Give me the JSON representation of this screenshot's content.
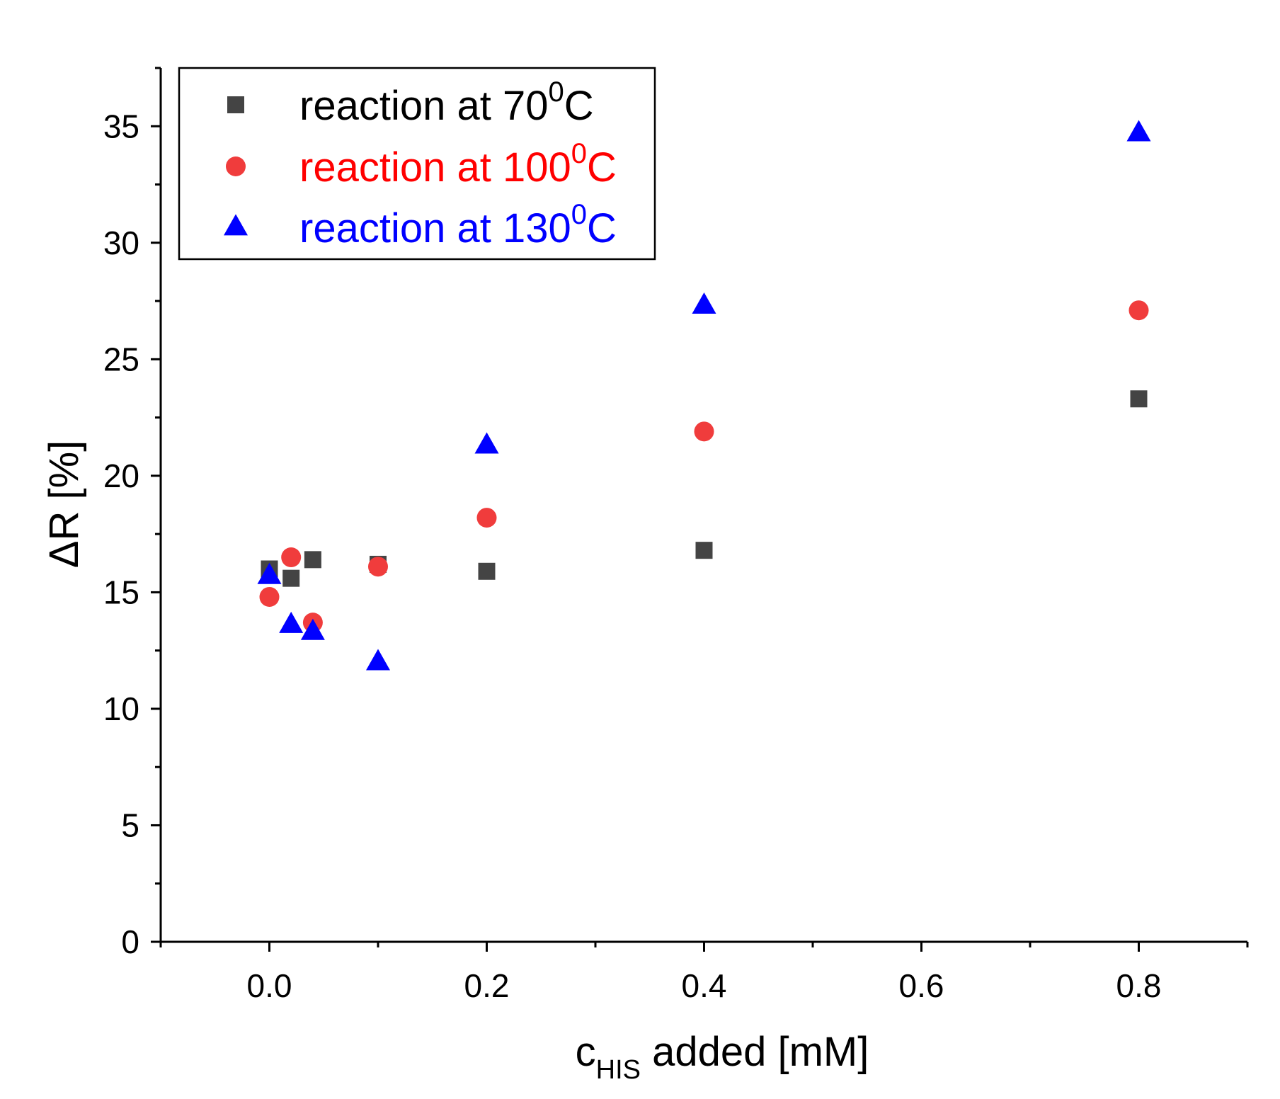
{
  "chart_data": {
    "type": "scatter",
    "title": "",
    "xlabel": {
      "main": "c",
      "sub": "HIS",
      "rest": " added [mM]"
    },
    "ylabel": "ΔR [%]",
    "xlim": [
      -0.1,
      0.9
    ],
    "ylim": [
      0,
      37.5
    ],
    "x_ticks": [
      0.0,
      0.2,
      0.4,
      0.6,
      0.8
    ],
    "x_tick_labels": [
      "0.0",
      "0.2",
      "0.4",
      "0.6",
      "0.8"
    ],
    "y_ticks": [
      0,
      5,
      10,
      15,
      20,
      25,
      30,
      35
    ],
    "y_tick_labels": [
      "0",
      "5",
      "10",
      "15",
      "20",
      "25",
      "30",
      "35"
    ],
    "grid": false,
    "legend_position": "top-left",
    "series": [
      {
        "name": "reaction at 70⁰C",
        "label_main": "reaction at 70",
        "label_sup": "0",
        "label_end": "C",
        "marker": "square",
        "color": "#444444",
        "x": [
          0.0,
          0.02,
          0.04,
          0.1,
          0.2,
          0.4,
          0.8
        ],
        "y": [
          16.0,
          15.6,
          16.4,
          16.2,
          15.9,
          16.8,
          23.3
        ]
      },
      {
        "name": "reaction at 100⁰C",
        "label_main": "reaction at 100",
        "label_sup": "0",
        "label_end": "C",
        "marker": "circle",
        "color": "#f03c3c",
        "text_color": "#ff0000",
        "x": [
          0.0,
          0.02,
          0.04,
          0.1,
          0.2,
          0.4,
          0.8
        ],
        "y": [
          14.8,
          16.5,
          13.7,
          16.1,
          18.2,
          21.9,
          27.1
        ]
      },
      {
        "name": "reaction at 130⁰C",
        "label_main": "reaction at 130",
        "label_sup": "0",
        "label_end": "C",
        "marker": "triangle",
        "color": "#0000ff",
        "text_color": "#0000ff",
        "x": [
          0.0,
          0.02,
          0.04,
          0.1,
          0.2,
          0.4,
          0.8
        ],
        "y": [
          15.7,
          13.6,
          13.3,
          12.0,
          21.3,
          27.3,
          34.7
        ]
      }
    ]
  }
}
